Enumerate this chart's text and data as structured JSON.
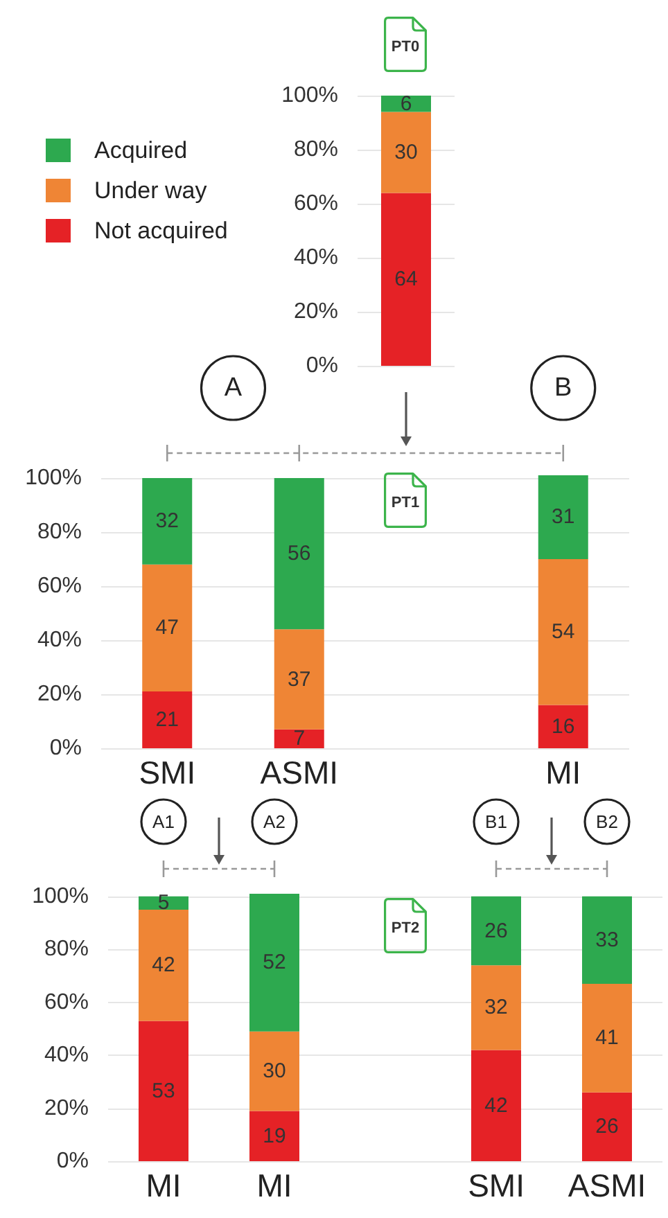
{
  "chart_data": [
    {
      "type": "bar",
      "title": "PT0",
      "categories": [
        null
      ],
      "series": [
        {
          "name": "Not acquired",
          "color": "#e52226",
          "values": [
            64
          ]
        },
        {
          "name": "Under way",
          "color": "#ef8535",
          "values": [
            30
          ]
        },
        {
          "name": "Acquired",
          "color": "#2da94f",
          "values": [
            6
          ]
        }
      ],
      "stacked": true,
      "ylim": [
        0,
        100
      ],
      "yticks": [
        {
          "value": 0,
          "label": "0%"
        },
        {
          "value": 20,
          "label": "20%"
        },
        {
          "value": 40,
          "label": "40%"
        },
        {
          "value": 60,
          "label": "60%"
        },
        {
          "value": 80,
          "label": "80%"
        },
        {
          "value": 100,
          "label": "100%"
        }
      ],
      "grid": "y",
      "legend": "left",
      "data_labels": true
    },
    {
      "type": "bar",
      "title": "PT1",
      "categories": [
        "SMI",
        "ASMI",
        null,
        "MI"
      ],
      "series": [
        {
          "color": "#e52226",
          "values": [
            21,
            7,
            null,
            16
          ]
        },
        {
          "color": "#ef8535",
          "values": [
            47,
            37,
            null,
            54
          ]
        },
        {
          "color": "#2da94f",
          "values": [
            32,
            56,
            null,
            31
          ]
        }
      ],
      "stacked": true,
      "ylim": [
        0,
        101
      ],
      "yticks": [
        {
          "value": 0,
          "label": "0%"
        },
        {
          "value": 20,
          "label": "20%"
        },
        {
          "value": 40,
          "label": "40%"
        },
        {
          "value": 60,
          "label": "60%"
        },
        {
          "value": 80,
          "label": "80%"
        },
        {
          "value": 100,
          "label": "100%"
        }
      ],
      "grid": "y",
      "data_labels": true,
      "annotations": [
        "A",
        "B"
      ]
    },
    {
      "type": "bar",
      "title": "PT2",
      "categories": [
        "MI",
        "MI",
        null,
        "SMI",
        "ASMI"
      ],
      "series": [
        {
          "color": "#e52226",
          "values": [
            53,
            19,
            null,
            42,
            26
          ]
        },
        {
          "color": "#ef8535",
          "values": [
            42,
            30,
            null,
            32,
            41
          ]
        },
        {
          "color": "#2da94f",
          "values": [
            5,
            52,
            null,
            26,
            33
          ]
        }
      ],
      "stacked": true,
      "ylim": [
        0,
        101
      ],
      "yticks": [
        {
          "value": 0,
          "label": "0%"
        },
        {
          "value": 20,
          "label": "20%"
        },
        {
          "value": 40,
          "label": "40%"
        },
        {
          "value": 60,
          "label": "60%"
        },
        {
          "value": 80,
          "label": "80%"
        },
        {
          "value": 100,
          "label": "100%"
        }
      ],
      "grid": "y",
      "data_labels": true,
      "annotations": [
        "A1",
        "A2",
        "B1",
        "B2"
      ]
    }
  ]
}
